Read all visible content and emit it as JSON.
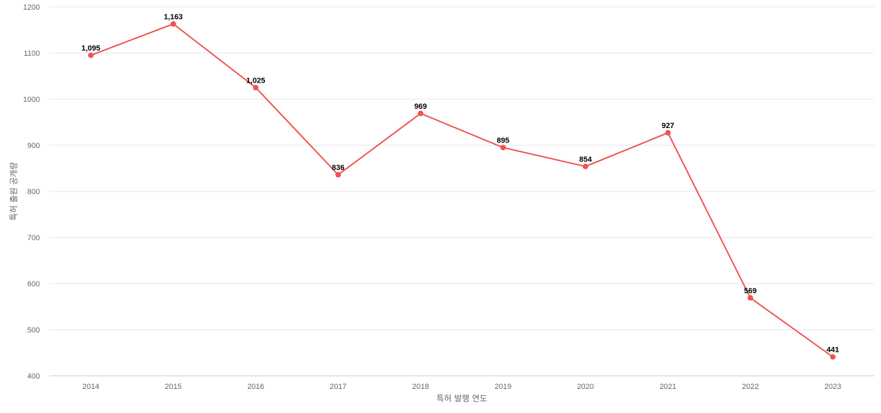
{
  "chart_data": {
    "type": "line",
    "title": "",
    "xlabel": "특허 발행 연도",
    "ylabel": "특허 출원 공개량",
    "categories": [
      "2014",
      "2015",
      "2016",
      "2017",
      "2018",
      "2019",
      "2020",
      "2021",
      "2022",
      "2023"
    ],
    "series": [
      {
        "values": [
          1095,
          1163,
          1025,
          836,
          969,
          895,
          854,
          927,
          569,
          441
        ],
        "labels": [
          "1,095",
          "1,163",
          "1,025",
          "836",
          "969",
          "895",
          "854",
          "927",
          "569",
          "441"
        ],
        "color": "#ef5350"
      }
    ],
    "ylim": [
      400,
      1200
    ],
    "yticks": [
      400,
      500,
      600,
      700,
      800,
      900,
      1000,
      1100,
      1200
    ],
    "grid": true,
    "legend": "none"
  }
}
